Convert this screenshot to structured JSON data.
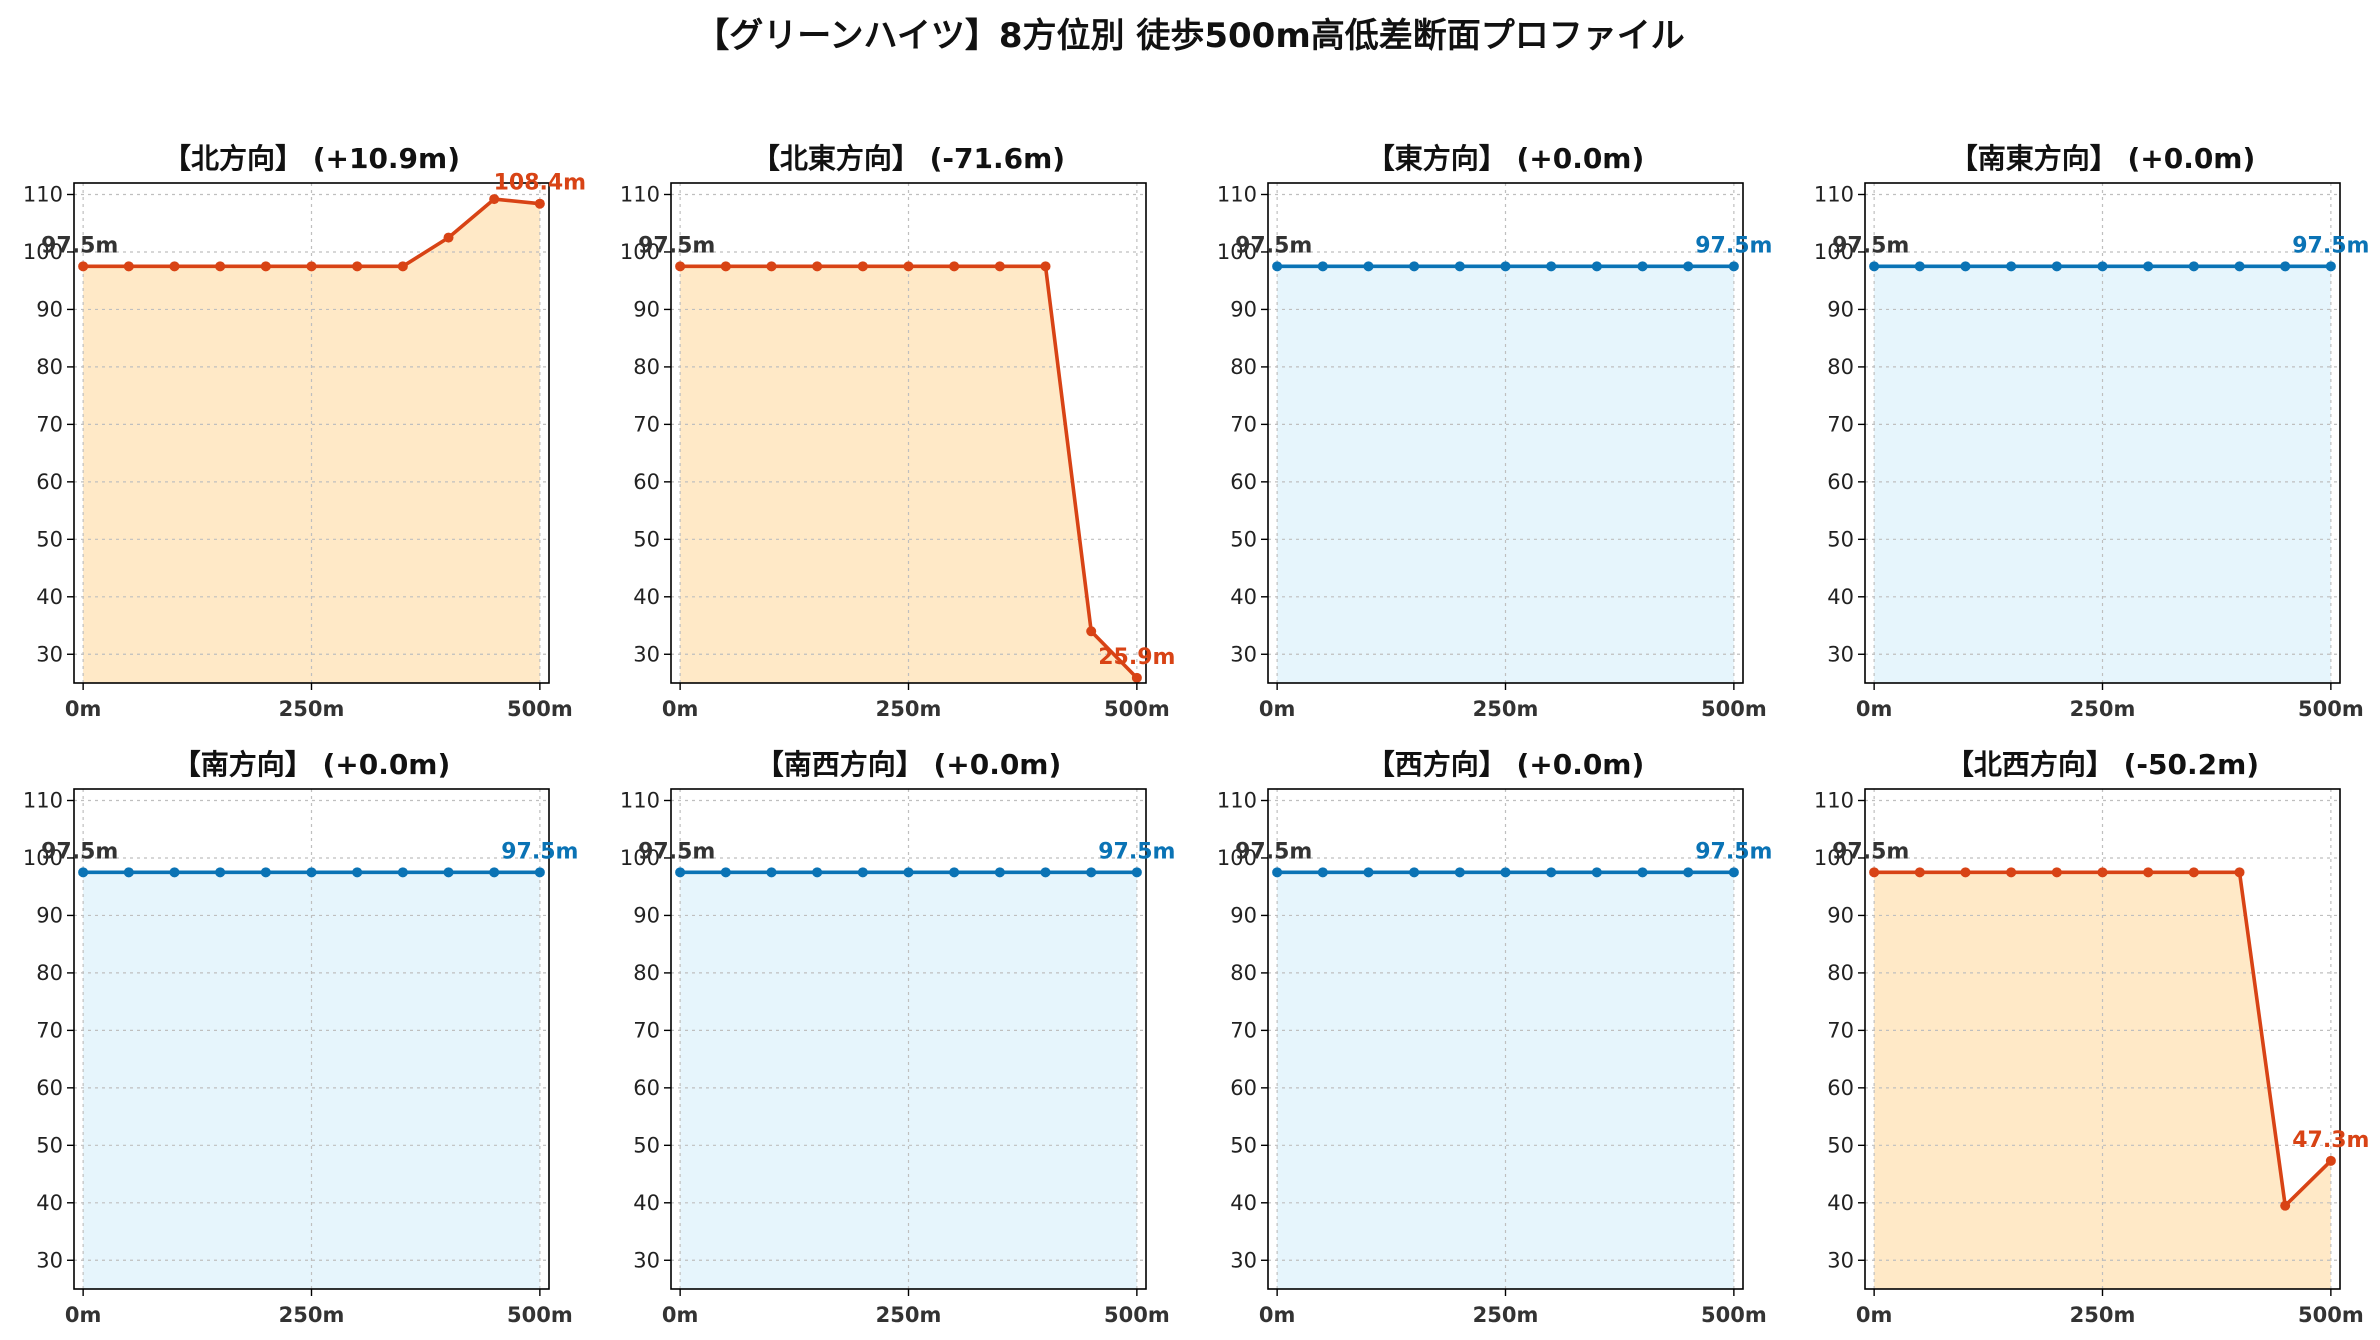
{
  "title": "【グリーンハイツ】8方位別 徒歩500m高低差断面プロファイル",
  "colors": {
    "rise": "#d84315",
    "rise_fill": "#ffe9c7",
    "flat": "#0a73b5",
    "flat_fill": "#e6f5fc",
    "start_label": "#333333"
  },
  "chart_data": [
    {
      "type": "area",
      "title": "【北方向】 (+10.9m)",
      "x": [
        0,
        50,
        100,
        150,
        200,
        250,
        300,
        350,
        400,
        450,
        500
      ],
      "y": [
        97.5,
        97.5,
        97.5,
        97.5,
        97.5,
        97.5,
        97.5,
        97.5,
        102.5,
        109.2,
        108.4
      ],
      "ylim": [
        25,
        112
      ],
      "yticks": [
        30,
        40,
        50,
        60,
        70,
        80,
        90,
        100,
        110
      ],
      "xticks": [
        "0m",
        "250m",
        "500m"
      ],
      "start_label": "97.5m",
      "end_label": "108.4m",
      "style": "rise",
      "grid": true
    },
    {
      "type": "area",
      "title": "【北東方向】 (-71.6m)",
      "x": [
        0,
        50,
        100,
        150,
        200,
        250,
        300,
        350,
        400,
        450,
        500
      ],
      "y": [
        97.5,
        97.5,
        97.5,
        97.5,
        97.5,
        97.5,
        97.5,
        97.5,
        97.5,
        34.0,
        25.9
      ],
      "ylim": [
        25,
        112
      ],
      "yticks": [
        30,
        40,
        50,
        60,
        70,
        80,
        90,
        100,
        110
      ],
      "xticks": [
        "0m",
        "250m",
        "500m"
      ],
      "start_label": "97.5m",
      "end_label": "25.9m",
      "style": "rise",
      "grid": true
    },
    {
      "type": "area",
      "title": "【東方向】 (+0.0m)",
      "x": [
        0,
        50,
        100,
        150,
        200,
        250,
        300,
        350,
        400,
        450,
        500
      ],
      "y": [
        97.5,
        97.5,
        97.5,
        97.5,
        97.5,
        97.5,
        97.5,
        97.5,
        97.5,
        97.5,
        97.5
      ],
      "ylim": [
        25,
        112
      ],
      "yticks": [
        30,
        40,
        50,
        60,
        70,
        80,
        90,
        100,
        110
      ],
      "xticks": [
        "0m",
        "250m",
        "500m"
      ],
      "start_label": "97.5m",
      "end_label": "97.5m",
      "style": "flat",
      "grid": true
    },
    {
      "type": "area",
      "title": "【南東方向】 (+0.0m)",
      "x": [
        0,
        50,
        100,
        150,
        200,
        250,
        300,
        350,
        400,
        450,
        500
      ],
      "y": [
        97.5,
        97.5,
        97.5,
        97.5,
        97.5,
        97.5,
        97.5,
        97.5,
        97.5,
        97.5,
        97.5
      ],
      "ylim": [
        25,
        112
      ],
      "yticks": [
        30,
        40,
        50,
        60,
        70,
        80,
        90,
        100,
        110
      ],
      "xticks": [
        "0m",
        "250m",
        "500m"
      ],
      "start_label": "97.5m",
      "end_label": "97.5m",
      "style": "flat",
      "grid": true
    },
    {
      "type": "area",
      "title": "【南方向】 (+0.0m)",
      "x": [
        0,
        50,
        100,
        150,
        200,
        250,
        300,
        350,
        400,
        450,
        500
      ],
      "y": [
        97.5,
        97.5,
        97.5,
        97.5,
        97.5,
        97.5,
        97.5,
        97.5,
        97.5,
        97.5,
        97.5
      ],
      "ylim": [
        25,
        112
      ],
      "yticks": [
        30,
        40,
        50,
        60,
        70,
        80,
        90,
        100,
        110
      ],
      "xticks": [
        "0m",
        "250m",
        "500m"
      ],
      "start_label": "97.5m",
      "end_label": "97.5m",
      "style": "flat",
      "grid": true
    },
    {
      "type": "area",
      "title": "【南西方向】 (+0.0m)",
      "x": [
        0,
        50,
        100,
        150,
        200,
        250,
        300,
        350,
        400,
        450,
        500
      ],
      "y": [
        97.5,
        97.5,
        97.5,
        97.5,
        97.5,
        97.5,
        97.5,
        97.5,
        97.5,
        97.5,
        97.5
      ],
      "ylim": [
        25,
        112
      ],
      "yticks": [
        30,
        40,
        50,
        60,
        70,
        80,
        90,
        100,
        110
      ],
      "xticks": [
        "0m",
        "250m",
        "500m"
      ],
      "start_label": "97.5m",
      "end_label": "97.5m",
      "style": "flat",
      "grid": true
    },
    {
      "type": "area",
      "title": "【西方向】 (+0.0m)",
      "x": [
        0,
        50,
        100,
        150,
        200,
        250,
        300,
        350,
        400,
        450,
        500
      ],
      "y": [
        97.5,
        97.5,
        97.5,
        97.5,
        97.5,
        97.5,
        97.5,
        97.5,
        97.5,
        97.5,
        97.5
      ],
      "ylim": [
        25,
        112
      ],
      "yticks": [
        30,
        40,
        50,
        60,
        70,
        80,
        90,
        100,
        110
      ],
      "xticks": [
        "0m",
        "250m",
        "500m"
      ],
      "start_label": "97.5m",
      "end_label": "97.5m",
      "style": "flat",
      "grid": true
    },
    {
      "type": "area",
      "title": "【北西方向】 (-50.2m)",
      "x": [
        0,
        50,
        100,
        150,
        200,
        250,
        300,
        350,
        400,
        450,
        500
      ],
      "y": [
        97.5,
        97.5,
        97.5,
        97.5,
        97.5,
        97.5,
        97.5,
        97.5,
        97.5,
        39.5,
        47.3
      ],
      "ylim": [
        25,
        112
      ],
      "yticks": [
        30,
        40,
        50,
        60,
        70,
        80,
        90,
        100,
        110
      ],
      "xticks": [
        "0m",
        "250m",
        "500m"
      ],
      "start_label": "97.5m",
      "end_label": "47.3m",
      "style": "rise",
      "grid": true
    }
  ]
}
